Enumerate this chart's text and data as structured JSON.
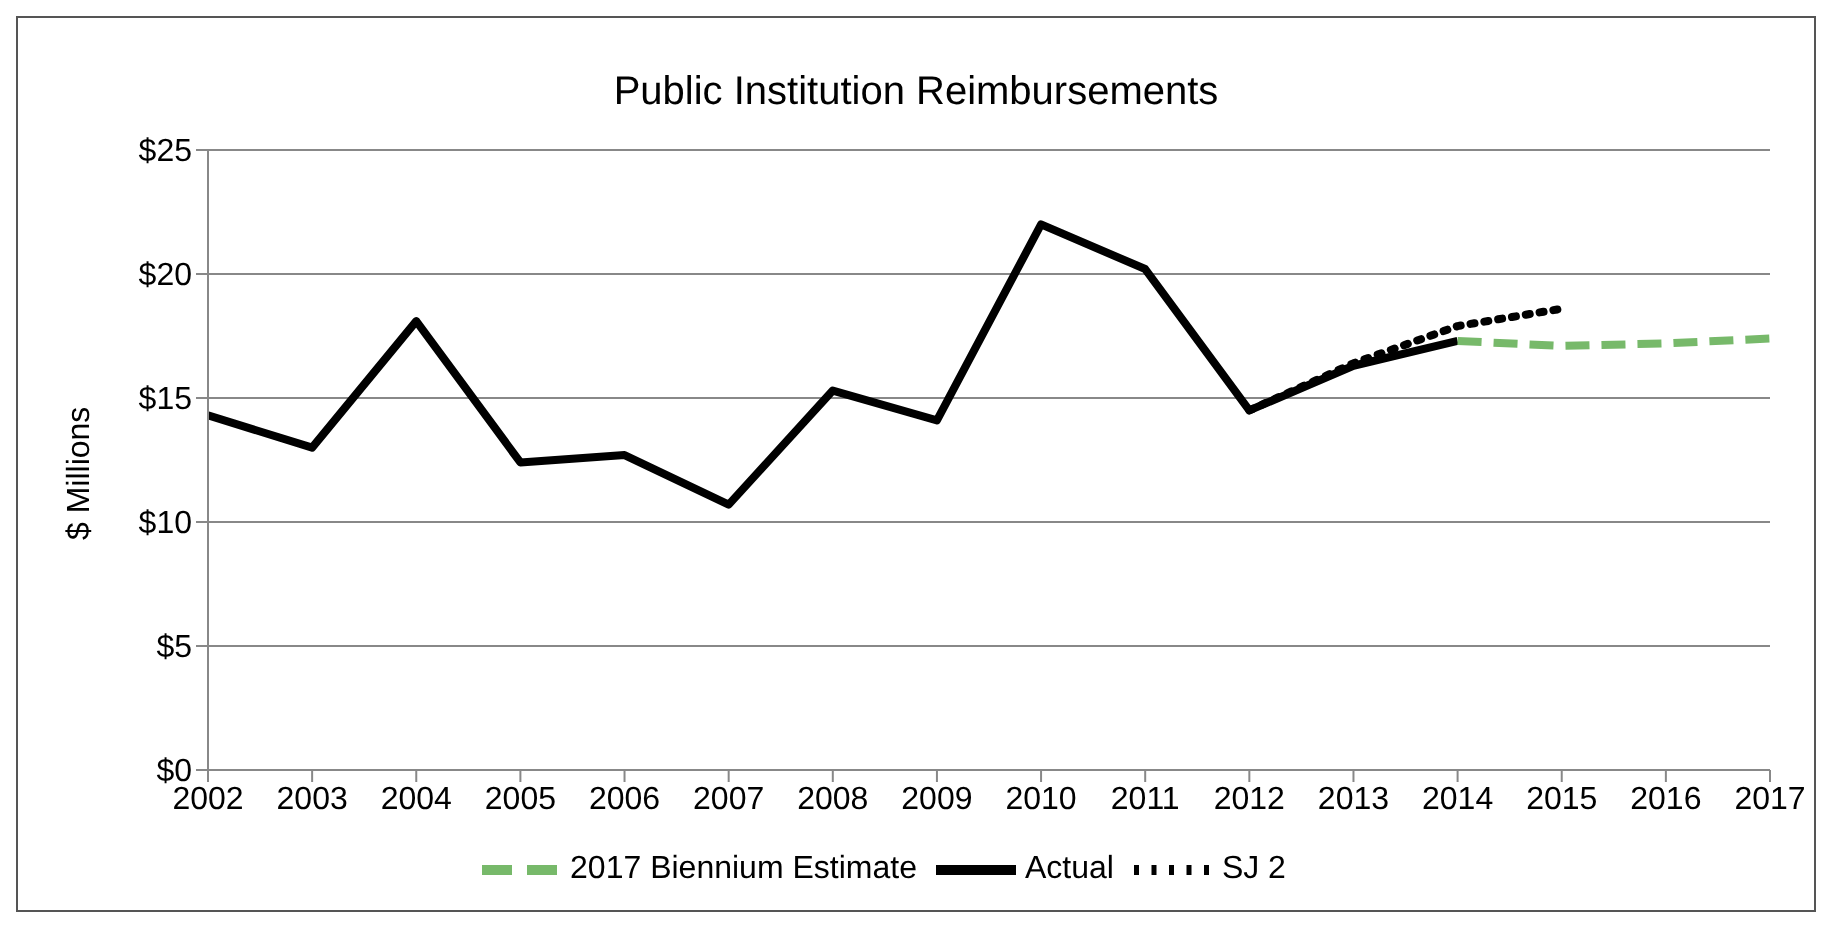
{
  "chart_data": {
    "type": "line",
    "title": "Public Institution  Reimbursements",
    "ylabel": "$ Millions",
    "xlim": [
      2002,
      2017
    ],
    "xticks": [
      2002,
      2003,
      2004,
      2005,
      2006,
      2007,
      2008,
      2009,
      2010,
      2011,
      2012,
      2013,
      2014,
      2015,
      2016,
      2017
    ],
    "ylim": [
      0,
      25
    ],
    "yticks": [
      {
        "value": 0,
        "label": "$0"
      },
      {
        "value": 5,
        "label": "$5"
      },
      {
        "value": 10,
        "label": "$10"
      },
      {
        "value": 15,
        "label": "$15"
      },
      {
        "value": 20,
        "label": "$20"
      },
      {
        "value": 25,
        "label": "$25"
      }
    ],
    "grid": "y",
    "legend": "bottom",
    "marker": "none",
    "series": [
      {
        "name": "Actual",
        "color": "#000000",
        "line_style": "solid",
        "x": [
          2002,
          2003,
          2004,
          2005,
          2006,
          2007,
          2008,
          2009,
          2010,
          2011,
          2012,
          2013,
          2014
        ],
        "values": [
          14.3,
          13.0,
          18.1,
          12.4,
          12.7,
          10.7,
          15.3,
          14.1,
          22.0,
          20.2,
          14.5,
          16.3,
          17.3
        ]
      },
      {
        "name": "SJ 2",
        "color": "#000000",
        "line_style": "dotted",
        "x": [
          2012,
          2013,
          2014,
          2015
        ],
        "values": [
          14.5,
          16.4,
          17.9,
          18.6
        ]
      },
      {
        "name": "2017 Biennium Estimate",
        "color": "#77b96a",
        "line_style": "dashed",
        "x": [
          2014,
          2015,
          2016,
          2017
        ],
        "values": [
          17.3,
          17.1,
          17.2,
          17.4
        ]
      }
    ]
  }
}
